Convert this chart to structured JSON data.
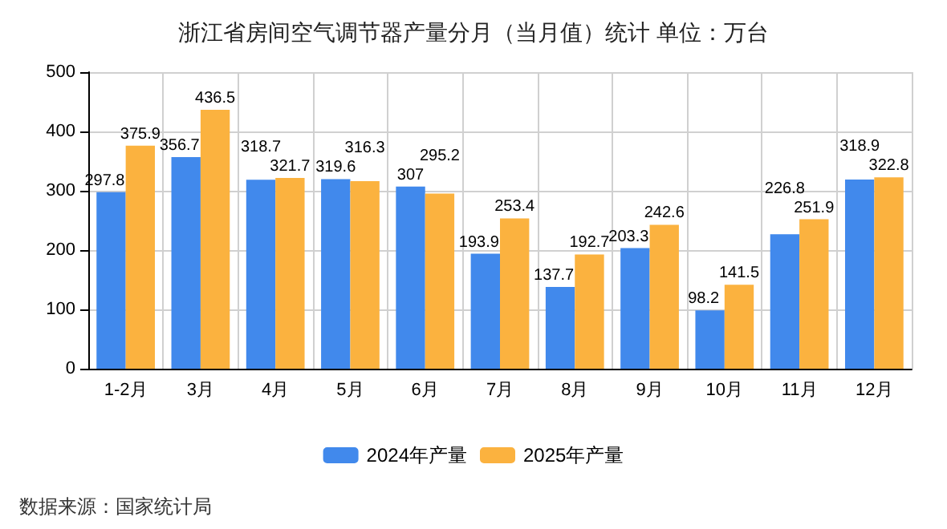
{
  "chart_data": {
    "type": "bar",
    "title": "浙江省房间空气调节器产量分月（当月值）统计 单位：万台",
    "categories": [
      "1-2月",
      "3月",
      "4月",
      "5月",
      "6月",
      "7月",
      "8月",
      "9月",
      "10月",
      "11月",
      "12月"
    ],
    "series": [
      {
        "name": "2024年产量",
        "color": "#4189ec",
        "values": [
          297.8,
          356.7,
          318.7,
          319.6,
          307,
          193.9,
          137.7,
          203.3,
          98.2,
          226.8,
          318.9
        ]
      },
      {
        "name": "2025年产量",
        "color": "#fbb23f",
        "values": [
          375.9,
          436.5,
          321.7,
          316.3,
          295.2,
          253.4,
          192.7,
          242.6,
          141.5,
          251.9,
          322.8
        ]
      }
    ],
    "ylim": [
      0,
      500
    ],
    "yticks": [
      0,
      100,
      200,
      300,
      400,
      500
    ],
    "grid": true,
    "legend": "bottom",
    "data_labels": true,
    "annotations": [
      "数据来源：国家统计局"
    ]
  }
}
